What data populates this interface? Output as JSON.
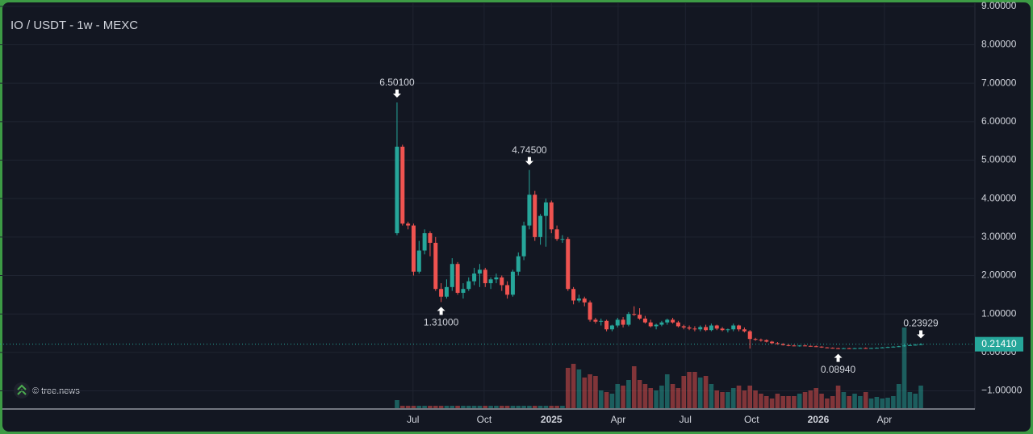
{
  "chart_data": {
    "type": "candlestick",
    "title": "IO / USDT - 1w - MEXC",
    "watermark": "© tree.news",
    "up_color": "#26a69a",
    "down_color": "#ef5350",
    "grid": true,
    "open": [
      3.1,
      5.35,
      3.35,
      3.3,
      2.1,
      2.65,
      3.1,
      2.85,
      1.65,
      1.45,
      1.7,
      2.3,
      1.55,
      1.65,
      1.85,
      2.05,
      2.15,
      1.8,
      1.9,
      1.95,
      1.75,
      1.5,
      2.1,
      2.5,
      3.3,
      4.1,
      3.0,
      3.55,
      3.9,
      3.2,
      2.95,
      2.95,
      1.65,
      1.35,
      1.4,
      1.3,
      0.85,
      0.8,
      0.82,
      0.6,
      0.7,
      0.85,
      0.72,
      1.0,
      0.98,
      0.88,
      0.78,
      0.68,
      0.72,
      0.78,
      0.85,
      0.78,
      0.68,
      0.65,
      0.62,
      0.6,
      0.66,
      0.58,
      0.7,
      0.62,
      0.58,
      0.6,
      0.7,
      0.6,
      0.55,
      0.35,
      0.33,
      0.32,
      0.28,
      0.24,
      0.22,
      0.19,
      0.18,
      0.17,
      0.18,
      0.17,
      0.16,
      0.15,
      0.13,
      0.12,
      0.11,
      0.1,
      0.11,
      0.105,
      0.11,
      0.115,
      0.11,
      0.115,
      0.12,
      0.13,
      0.14,
      0.15,
      0.16,
      0.18,
      0.19,
      0.2
    ],
    "high": [
      6.501,
      5.4,
      3.4,
      3.35,
      2.9,
      3.2,
      3.15,
      3.0,
      1.8,
      1.9,
      2.45,
      2.35,
      1.8,
      1.95,
      2.2,
      2.3,
      2.2,
      1.95,
      2.05,
      2.0,
      1.85,
      2.15,
      2.6,
      3.4,
      4.745,
      4.2,
      3.6,
      4.0,
      3.95,
      3.3,
      3.05,
      3.0,
      1.7,
      1.5,
      1.45,
      1.35,
      0.9,
      0.88,
      0.85,
      0.72,
      0.9,
      0.92,
      1.05,
      1.2,
      1.15,
      0.95,
      0.85,
      0.75,
      0.82,
      0.88,
      0.9,
      0.82,
      0.72,
      0.7,
      0.68,
      0.7,
      0.72,
      0.75,
      0.72,
      0.66,
      0.62,
      0.75,
      0.72,
      0.65,
      0.58,
      0.38,
      0.36,
      0.34,
      0.3,
      0.27,
      0.24,
      0.22,
      0.2,
      0.19,
      0.2,
      0.18,
      0.18,
      0.16,
      0.14,
      0.13,
      0.12,
      0.12,
      0.12,
      0.12,
      0.125,
      0.13,
      0.12,
      0.13,
      0.14,
      0.15,
      0.16,
      0.17,
      0.2,
      0.21,
      0.22,
      0.23929
    ],
    "low": [
      3.05,
      3.3,
      3.2,
      2.0,
      2.05,
      2.55,
      2.5,
      1.6,
      1.31,
      1.4,
      1.6,
      1.5,
      1.4,
      1.6,
      1.75,
      1.7,
      1.7,
      1.65,
      1.8,
      1.6,
      1.4,
      1.45,
      2.0,
      2.4,
      3.2,
      2.9,
      2.8,
      2.75,
      3.1,
      2.9,
      2.85,
      1.6,
      1.25,
      1.3,
      1.2,
      0.8,
      0.75,
      0.7,
      0.55,
      0.55,
      0.65,
      0.65,
      0.68,
      0.95,
      0.85,
      0.75,
      0.65,
      0.6,
      0.68,
      0.72,
      0.75,
      0.65,
      0.6,
      0.58,
      0.55,
      0.55,
      0.55,
      0.55,
      0.58,
      0.55,
      0.52,
      0.55,
      0.55,
      0.52,
      0.1,
      0.3,
      0.28,
      0.26,
      0.22,
      0.2,
      0.18,
      0.16,
      0.16,
      0.15,
      0.16,
      0.15,
      0.14,
      0.12,
      0.11,
      0.1,
      0.0894,
      0.095,
      0.1,
      0.1,
      0.1,
      0.105,
      0.1,
      0.11,
      0.11,
      0.12,
      0.13,
      0.14,
      0.15,
      0.17,
      0.18,
      0.19
    ],
    "close": [
      5.35,
      3.35,
      3.3,
      2.1,
      2.65,
      3.1,
      2.85,
      1.65,
      1.45,
      1.7,
      2.3,
      1.55,
      1.65,
      1.85,
      2.05,
      2.15,
      1.8,
      1.9,
      1.95,
      1.75,
      1.5,
      2.1,
      2.5,
      3.3,
      4.1,
      3.0,
      3.55,
      3.9,
      3.2,
      2.95,
      2.95,
      1.65,
      1.35,
      1.4,
      1.3,
      0.85,
      0.8,
      0.82,
      0.6,
      0.7,
      0.85,
      0.72,
      1.0,
      0.98,
      0.88,
      0.78,
      0.68,
      0.72,
      0.78,
      0.85,
      0.78,
      0.68,
      0.65,
      0.62,
      0.6,
      0.66,
      0.58,
      0.7,
      0.62,
      0.58,
      0.6,
      0.7,
      0.6,
      0.55,
      0.35,
      0.33,
      0.32,
      0.28,
      0.24,
      0.22,
      0.19,
      0.18,
      0.17,
      0.18,
      0.17,
      0.16,
      0.15,
      0.13,
      0.12,
      0.11,
      0.1,
      0.11,
      0.105,
      0.11,
      0.115,
      0.11,
      0.115,
      0.12,
      0.13,
      0.14,
      0.15,
      0.16,
      0.18,
      0.19,
      0.2,
      0.2141
    ],
    "volume": [
      10,
      3,
      3,
      3,
      3,
      3,
      3,
      3,
      3,
      3,
      3,
      3,
      3,
      3,
      3,
      3,
      3,
      3,
      3,
      3,
      3,
      3,
      3,
      3,
      3,
      3,
      3,
      3,
      3,
      3,
      3,
      50,
      55,
      48,
      38,
      42,
      40,
      22,
      20,
      18,
      30,
      28,
      35,
      52,
      35,
      30,
      25,
      22,
      28,
      42,
      30,
      25,
      40,
      45,
      45,
      38,
      40,
      30,
      22,
      20,
      20,
      25,
      28,
      22,
      28,
      22,
      18,
      15,
      12,
      18,
      15,
      15,
      15,
      18,
      20,
      22,
      25,
      18,
      12,
      15,
      28,
      20,
      15,
      18,
      15,
      20,
      12,
      14,
      12,
      13,
      15,
      30,
      100,
      20,
      18,
      28
    ],
    "vlim": [
      0,
      100
    ],
    "xlim": [
      -72.0,
      104.8
    ],
    "xticks": [
      {
        "value": 2.9,
        "label": "Jul"
      },
      {
        "value": 15.8,
        "label": "Oct"
      },
      {
        "value": 28.0,
        "label": "2025"
      },
      {
        "value": 40.1,
        "label": "Apr"
      },
      {
        "value": 52.3,
        "label": "Jul"
      },
      {
        "value": 64.3,
        "label": "Oct"
      },
      {
        "value": 76.4,
        "label": "2026"
      },
      {
        "value": 88.4,
        "label": "Apr"
      }
    ],
    "ylim": [
      -1.45,
      9.08
    ],
    "yticks": [
      {
        "value": 9,
        "label": "9.00000"
      },
      {
        "value": 8,
        "label": "8.00000"
      },
      {
        "value": 7,
        "label": "7.00000"
      },
      {
        "value": 6,
        "label": "6.00000"
      },
      {
        "value": 5,
        "label": "5.00000"
      },
      {
        "value": 4,
        "label": "4.00000"
      },
      {
        "value": 3,
        "label": "3.00000"
      },
      {
        "value": 2,
        "label": "2.00000"
      },
      {
        "value": 1,
        "label": "1.00000"
      },
      {
        "value": 0,
        "label": "0.00000"
      },
      {
        "value": -1,
        "label": "−1.00000"
      }
    ],
    "markers": [
      {
        "value": 6.501,
        "label": "6.50100"
      },
      {
        "value": 1.31,
        "label": "1.31000"
      },
      {
        "value": 4.745,
        "label": "4.74500"
      },
      {
        "value": 0.0894,
        "label": "0.08940"
      },
      {
        "value": 0.23929,
        "label": "0.23929"
      }
    ],
    "last_label": "0.21410"
  }
}
